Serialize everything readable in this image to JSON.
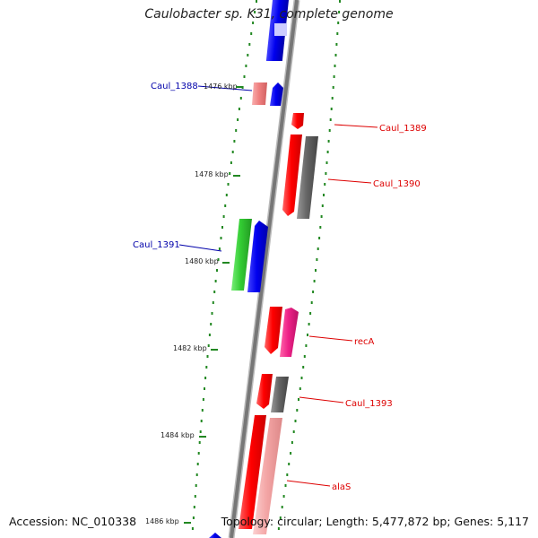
{
  "title": "Caulobacter sp. K31, complete genome",
  "footer": {
    "accession": "Accession: NC_010338",
    "summary": "Topology: circular; Length: 5,477,872 bp; Genes: 5,117"
  },
  "colors": {
    "blue": "#0000ee",
    "red": "#ff0000",
    "gray": "#666666",
    "green": "#33cc33",
    "magenta": "#ee2288",
    "salmon": "#f08080",
    "pink": "#f4a6a6",
    "tick_green": "#228822",
    "label_red": "#dd0000",
    "label_blue": "#0000aa"
  },
  "ticks": [
    "1476 kbp",
    "1478 kbp",
    "1480 kbp",
    "1482 kbp",
    "1484 kbp",
    "1486 kbp"
  ],
  "genes": [
    {
      "label": "Caul_1388",
      "color": "blue"
    },
    {
      "label": "Caul_1389",
      "color": "red"
    },
    {
      "label": "Caul_1390",
      "color": "red"
    },
    {
      "label": "Caul_1391",
      "color": "blue"
    },
    {
      "label": "recA",
      "color": "red"
    },
    {
      "label": "Caul_1393",
      "color": "red"
    },
    {
      "label": "alaS",
      "color": "red"
    }
  ]
}
